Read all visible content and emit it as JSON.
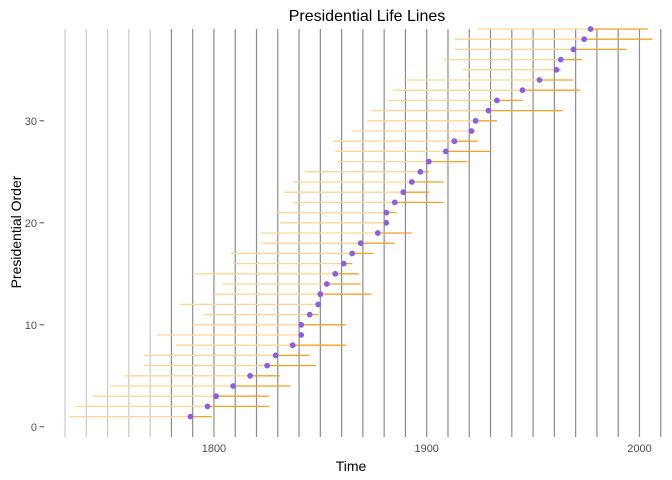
{
  "chart_data": {
    "type": "scatter",
    "title": "Presidential Life Lines",
    "xlabel": "Time",
    "ylabel": "Presidential Order",
    "xlim": [
      1722,
      2012
    ],
    "ylim": [
      -1,
      39
    ],
    "x_ticks": [
      1800,
      1900,
      2000
    ],
    "y_ticks": [
      0,
      10,
      20,
      30
    ],
    "grid": "vertical lines at decade years",
    "light_gridlines": [
      1730,
      1740,
      1750,
      1760,
      1770
    ],
    "dark_gridlines": [
      1780,
      1790,
      1800,
      1810,
      1820,
      1830,
      1840,
      1850,
      1860,
      1870,
      1880,
      1890,
      1900,
      1910,
      1920,
      1930,
      1940,
      1950,
      1960,
      1970,
      1980,
      1990,
      2000,
      2010
    ],
    "colors": {
      "point": "#8a5fe0",
      "life_before": "#ffd596",
      "life_after": "#f5a128",
      "grid_light": "#c8c8c8",
      "grid_dark": "#8c8c8c"
    },
    "presidents": [
      {
        "order": 1,
        "birth": 1732,
        "inaugurated": 1789,
        "death": 1799
      },
      {
        "order": 2,
        "birth": 1735,
        "inaugurated": 1797,
        "death": 1826
      },
      {
        "order": 3,
        "birth": 1743,
        "inaugurated": 1801,
        "death": 1826
      },
      {
        "order": 4,
        "birth": 1751,
        "inaugurated": 1809,
        "death": 1836
      },
      {
        "order": 5,
        "birth": 1758,
        "inaugurated": 1817,
        "death": 1831
      },
      {
        "order": 6,
        "birth": 1767,
        "inaugurated": 1825,
        "death": 1848
      },
      {
        "order": 7,
        "birth": 1767,
        "inaugurated": 1829,
        "death": 1845
      },
      {
        "order": 8,
        "birth": 1782,
        "inaugurated": 1837,
        "death": 1862
      },
      {
        "order": 9,
        "birth": 1773,
        "inaugurated": 1841,
        "death": 1841
      },
      {
        "order": 10,
        "birth": 1790,
        "inaugurated": 1841,
        "death": 1862
      },
      {
        "order": 11,
        "birth": 1795,
        "inaugurated": 1845,
        "death": 1849
      },
      {
        "order": 12,
        "birth": 1784,
        "inaugurated": 1849,
        "death": 1850
      },
      {
        "order": 13,
        "birth": 1800,
        "inaugurated": 1850,
        "death": 1874
      },
      {
        "order": 14,
        "birth": 1804,
        "inaugurated": 1853,
        "death": 1869
      },
      {
        "order": 15,
        "birth": 1791,
        "inaugurated": 1857,
        "death": 1868
      },
      {
        "order": 16,
        "birth": 1809,
        "inaugurated": 1861,
        "death": 1865
      },
      {
        "order": 17,
        "birth": 1808,
        "inaugurated": 1865,
        "death": 1875
      },
      {
        "order": 18,
        "birth": 1822,
        "inaugurated": 1869,
        "death": 1885
      },
      {
        "order": 19,
        "birth": 1822,
        "inaugurated": 1877,
        "death": 1893
      },
      {
        "order": 20,
        "birth": 1831,
        "inaugurated": 1881,
        "death": 1881
      },
      {
        "order": 21,
        "birth": 1829,
        "inaugurated": 1881,
        "death": 1886
      },
      {
        "order": 22,
        "birth": 1837,
        "inaugurated": 1885,
        "death": 1908
      },
      {
        "order": 23,
        "birth": 1833,
        "inaugurated": 1889,
        "death": 1901
      },
      {
        "order": 24,
        "birth": 1837,
        "inaugurated": 1893,
        "death": 1908
      },
      {
        "order": 25,
        "birth": 1843,
        "inaugurated": 1897,
        "death": 1901
      },
      {
        "order": 26,
        "birth": 1858,
        "inaugurated": 1901,
        "death": 1919
      },
      {
        "order": 27,
        "birth": 1857,
        "inaugurated": 1909,
        "death": 1930
      },
      {
        "order": 28,
        "birth": 1856,
        "inaugurated": 1913,
        "death": 1924
      },
      {
        "order": 29,
        "birth": 1865,
        "inaugurated": 1921,
        "death": 1923
      },
      {
        "order": 30,
        "birth": 1872,
        "inaugurated": 1923,
        "death": 1933
      },
      {
        "order": 31,
        "birth": 1874,
        "inaugurated": 1929,
        "death": 1964
      },
      {
        "order": 32,
        "birth": 1882,
        "inaugurated": 1933,
        "death": 1945
      },
      {
        "order": 33,
        "birth": 1884,
        "inaugurated": 1945,
        "death": 1972
      },
      {
        "order": 34,
        "birth": 1890,
        "inaugurated": 1953,
        "death": 1969
      },
      {
        "order": 35,
        "birth": 1917,
        "inaugurated": 1961,
        "death": 1963
      },
      {
        "order": 36,
        "birth": 1908,
        "inaugurated": 1963,
        "death": 1973
      },
      {
        "order": 37,
        "birth": 1913,
        "inaugurated": 1969,
        "death": 1994
      },
      {
        "order": 38,
        "birth": 1913,
        "inaugurated": 1974,
        "death": 2006
      },
      {
        "order": 39,
        "birth": 1924,
        "inaugurated": 1977,
        "death": 2004
      }
    ]
  }
}
